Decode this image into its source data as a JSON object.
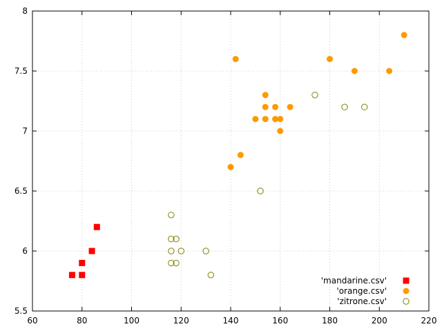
{
  "chart_data": {
    "type": "scatter",
    "title": "",
    "xlabel": "",
    "ylabel": "",
    "xlim": [
      60,
      220
    ],
    "ylim": [
      5.5,
      8
    ],
    "xticks": [
      "60",
      "80",
      "100",
      "120",
      "140",
      "160",
      "180",
      "200",
      "220"
    ],
    "yticks": [
      "5.5",
      "6",
      "6.5",
      "7",
      "7.5",
      "8"
    ],
    "grid": true,
    "legend_position": "bottom-right",
    "series": [
      {
        "name": "'mandarine.csv'",
        "marker": "filled-square",
        "color": "#ff0000",
        "points": [
          [
            76,
            5.8
          ],
          [
            80,
            5.8
          ],
          [
            80,
            5.9
          ],
          [
            84,
            6.0
          ],
          [
            86,
            6.2
          ]
        ]
      },
      {
        "name": "'orange.csv'",
        "marker": "filled-circle",
        "color": "#ff9900",
        "points": [
          [
            140,
            6.7
          ],
          [
            142,
            7.6
          ],
          [
            144,
            6.8
          ],
          [
            150,
            7.1
          ],
          [
            154,
            7.3
          ],
          [
            154,
            7.2
          ],
          [
            154,
            7.1
          ],
          [
            158,
            7.2
          ],
          [
            158,
            7.1
          ],
          [
            160,
            7.1
          ],
          [
            160,
            7.0
          ],
          [
            164,
            7.2
          ],
          [
            180,
            7.6
          ],
          [
            190,
            7.5
          ],
          [
            204,
            7.5
          ],
          [
            210,
            7.8
          ]
        ]
      },
      {
        "name": "'zitrone.csv'",
        "marker": "open-circle",
        "color": "#808000",
        "points": [
          [
            116,
            6.3
          ],
          [
            116,
            6.1
          ],
          [
            116,
            6.0
          ],
          [
            116,
            5.9
          ],
          [
            118,
            6.1
          ],
          [
            118,
            5.9
          ],
          [
            120,
            6.0
          ],
          [
            130,
            6.0
          ],
          [
            132,
            5.8
          ],
          [
            152,
            6.5
          ],
          [
            174,
            7.3
          ],
          [
            186,
            7.2
          ],
          [
            194,
            7.2
          ]
        ]
      }
    ]
  }
}
